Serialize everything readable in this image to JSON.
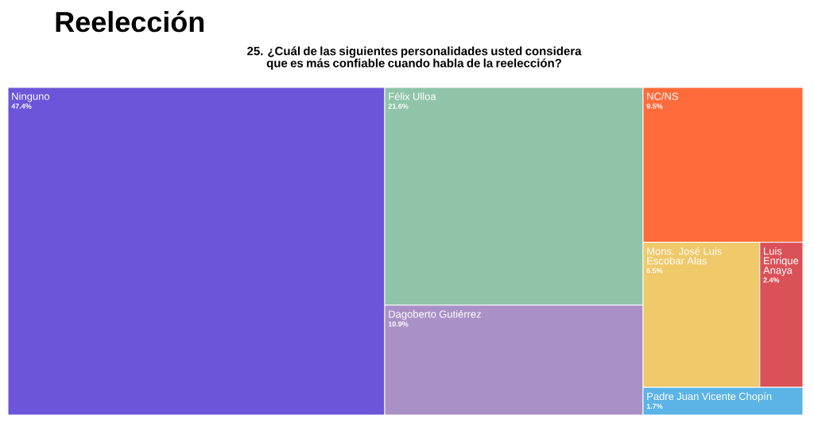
{
  "chart_data": {
    "type": "other",
    "title": "Reelección",
    "subtitle": "25. ¿Cuál de las siguientes personalidades usted considera que es más confiable cuando habla de la reelección?",
    "categories": [
      "Ninguno",
      "Félix Ulloa",
      "Dagoberto Gutiérrez",
      "NC/NS",
      "Mons. José Luis Escobar Alas",
      "Luis Enrique Anaya",
      "Padre Juan Vicente Chopín"
    ],
    "values": [
      47.4,
      21.6,
      10.9,
      9.5,
      6.5,
      2.4,
      1.7
    ],
    "value_labels": [
      "47.4%",
      "21.6%",
      "10.9%",
      "9.5%",
      "6.5%",
      "2.4%",
      "1.7%"
    ],
    "colors": [
      "#6c55d9",
      "#8fc4a8",
      "#a990c6",
      "#ff6b3a",
      "#efc96a",
      "#da5157",
      "#5bb3e6"
    ]
  }
}
